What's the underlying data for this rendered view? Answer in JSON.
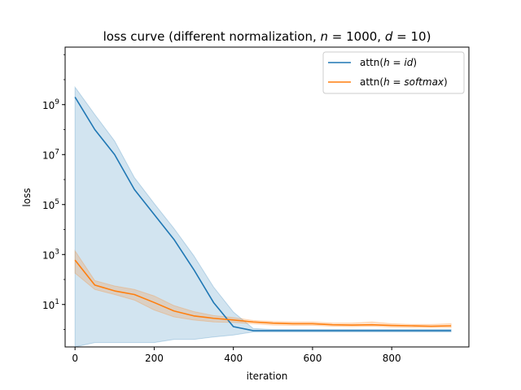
{
  "chart_data": {
    "type": "line",
    "title": "loss curve (different normalization, n = 1000, d = 10)",
    "title_parts": {
      "prefix": "loss curve (different normalization, ",
      "n_var": "n",
      "n_eq": " = 1000, ",
      "d_var": "d",
      "d_eq": " = 10)"
    },
    "xlabel": "iteration",
    "ylabel": "loss",
    "yscale": "log",
    "xlim": [
      -25,
      995
    ],
    "ylim": [
      0.2,
      200000000000
    ],
    "x_ticks": [
      0,
      200,
      400,
      600,
      800
    ],
    "x_tick_labels": [
      "0",
      "200",
      "400",
      "600",
      "800"
    ],
    "y_ticks": [
      10,
      1000,
      100000,
      10000000,
      1000000000
    ],
    "y_tick_base": "10",
    "y_tick_exponents": [
      "1",
      "3",
      "5",
      "7",
      "9"
    ],
    "grid": false,
    "legend_position": "top-right",
    "x": [
      0,
      50,
      100,
      150,
      200,
      250,
      300,
      350,
      400,
      450,
      500,
      550,
      600,
      650,
      700,
      750,
      800,
      850,
      900,
      950
    ],
    "series": [
      {
        "name": "attn(h = id)",
        "name_parts": {
          "prefix": "attn(",
          "var": "h",
          "eq": " = ",
          "val": "id",
          "suffix": ")"
        },
        "color": "#1f77b4",
        "values": [
          2000000000,
          100000000,
          10000000,
          400000,
          40000,
          4000,
          250,
          12,
          1.3,
          0.9,
          0.9,
          0.9,
          0.9,
          0.9,
          0.9,
          0.9,
          0.9,
          0.9,
          0.9,
          0.9
        ],
        "band_upper": [
          5000000000,
          400000000,
          35000000,
          1200000,
          110000,
          11000,
          900,
          50,
          5,
          1.1,
          1.0,
          1.0,
          1.0,
          1.0,
          1.0,
          1.0,
          1.0,
          1.0,
          1.0,
          1.0
        ],
        "band_lower": [
          0.2,
          0.3,
          0.3,
          0.3,
          0.3,
          0.4,
          0.4,
          0.5,
          0.6,
          0.8,
          0.8,
          0.8,
          0.8,
          0.8,
          0.8,
          0.8,
          0.8,
          0.8,
          0.8,
          0.8
        ]
      },
      {
        "name": "attn(h = softmax)",
        "name_parts": {
          "prefix": "attn(",
          "var": "h",
          "eq": " = ",
          "val": "softmax",
          "suffix": ")"
        },
        "color": "#ff7f0e",
        "values": [
          600,
          60,
          35,
          25,
          12,
          5.5,
          3.5,
          2.8,
          2.4,
          2.0,
          1.8,
          1.7,
          1.7,
          1.55,
          1.5,
          1.55,
          1.45,
          1.4,
          1.35,
          1.4
        ],
        "band_upper": [
          1400,
          90,
          55,
          40,
          22,
          9,
          5.2,
          3.6,
          3.0,
          2.3,
          2.1,
          2.0,
          2.0,
          1.8,
          1.8,
          2.0,
          1.7,
          1.6,
          1.6,
          1.7
        ],
        "band_lower": [
          180,
          40,
          25,
          15,
          6,
          3.2,
          2.4,
          2.0,
          1.9,
          1.7,
          1.5,
          1.45,
          1.45,
          1.35,
          1.3,
          1.35,
          1.25,
          1.2,
          1.2,
          1.2
        ]
      }
    ]
  }
}
